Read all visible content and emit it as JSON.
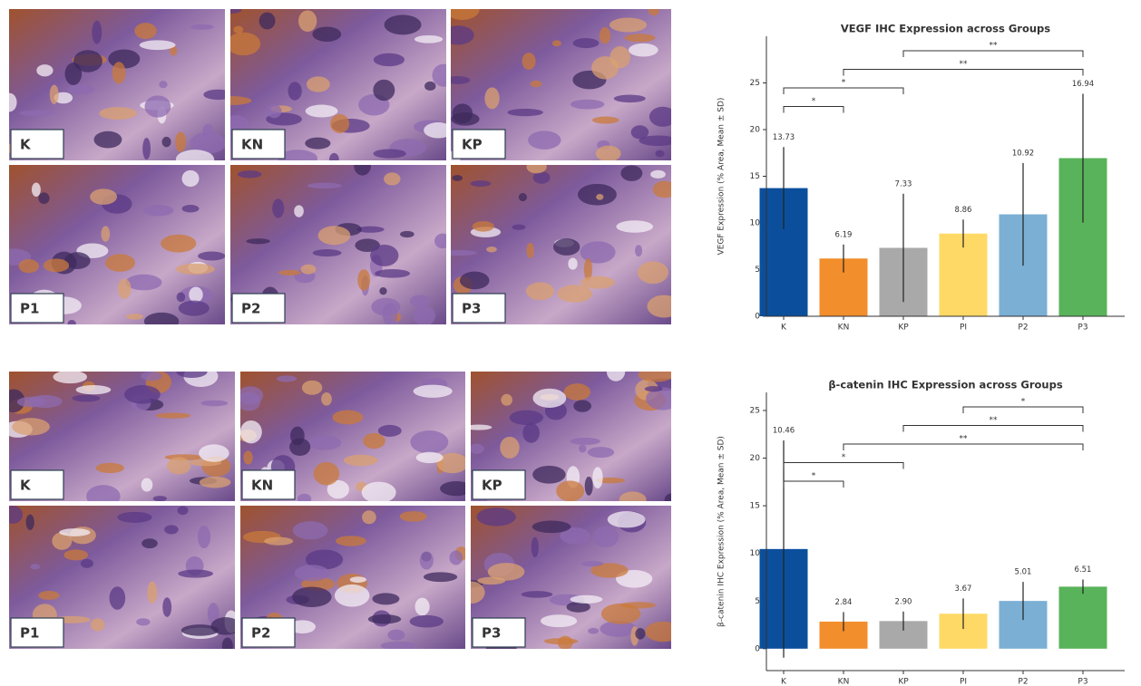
{
  "image_panels": [
    {
      "labels": [
        "K",
        "KN",
        "KP",
        "P1",
        "P2",
        "P3"
      ]
    },
    {
      "labels": [
        "K",
        "KN",
        "KP",
        "P1",
        "P2",
        "P3"
      ]
    }
  ],
  "chart_data": [
    {
      "type": "bar",
      "title": "VEGF IHC Expression across Groups",
      "y_label": "VEGF Expression (% Area, Mean ± SD)",
      "categories": [
        "K",
        "KN",
        "KP",
        "PI",
        "P2",
        "P3"
      ],
      "values": [
        13.73,
        6.19,
        7.33,
        8.86,
        10.92,
        16.94
      ],
      "errors": [
        4.4,
        1.5,
        5.8,
        1.5,
        5.5,
        6.9
      ],
      "colors": [
        "#0b4f9c",
        "#f28e2b",
        "#a9a9a9",
        "#ffd966",
        "#7bafd4",
        "#59b35a"
      ],
      "ylim": [
        0,
        30
      ],
      "yticks": [
        0,
        5,
        10,
        15,
        20,
        25
      ],
      "significance": [
        {
          "pair": [
            0,
            1
          ],
          "label": "*"
        },
        {
          "pair": [
            0,
            2
          ],
          "label": "*"
        },
        {
          "pair": [
            1,
            5
          ],
          "label": "**"
        },
        {
          "pair": [
            2,
            5
          ],
          "label": "**"
        }
      ]
    },
    {
      "type": "bar",
      "title": "β-catenin IHC Expression across Groups",
      "y_label": "β-catenin IHC Expression (% Area, Mean ± SD)",
      "categories": [
        "K",
        "KN",
        "KP",
        "PI",
        "P2",
        "P3"
      ],
      "values": [
        10.46,
        2.84,
        2.9,
        3.67,
        5.01,
        6.51
      ],
      "value_labels": [
        "10.46",
        "2.84",
        "2.90",
        "3.67",
        "5.01",
        "6.51"
      ],
      "errors": [
        11.4,
        1.0,
        1.0,
        1.6,
        2.0,
        0.75
      ],
      "colors": [
        "#0b4f9c",
        "#f28e2b",
        "#a9a9a9",
        "#ffd966",
        "#7bafd4",
        "#59b35a"
      ],
      "ylim": [
        -2.3,
        26.9
      ],
      "yticks": [
        0,
        5,
        10,
        15,
        20,
        25
      ],
      "significance": [
        {
          "pair": [
            0,
            1
          ],
          "label": "*"
        },
        {
          "pair": [
            0,
            2
          ],
          "label": "*"
        },
        {
          "pair": [
            1,
            5
          ],
          "label": "**"
        },
        {
          "pair": [
            2,
            5
          ],
          "label": "**"
        },
        {
          "pair": [
            3,
            5
          ],
          "label": "*"
        }
      ]
    }
  ]
}
